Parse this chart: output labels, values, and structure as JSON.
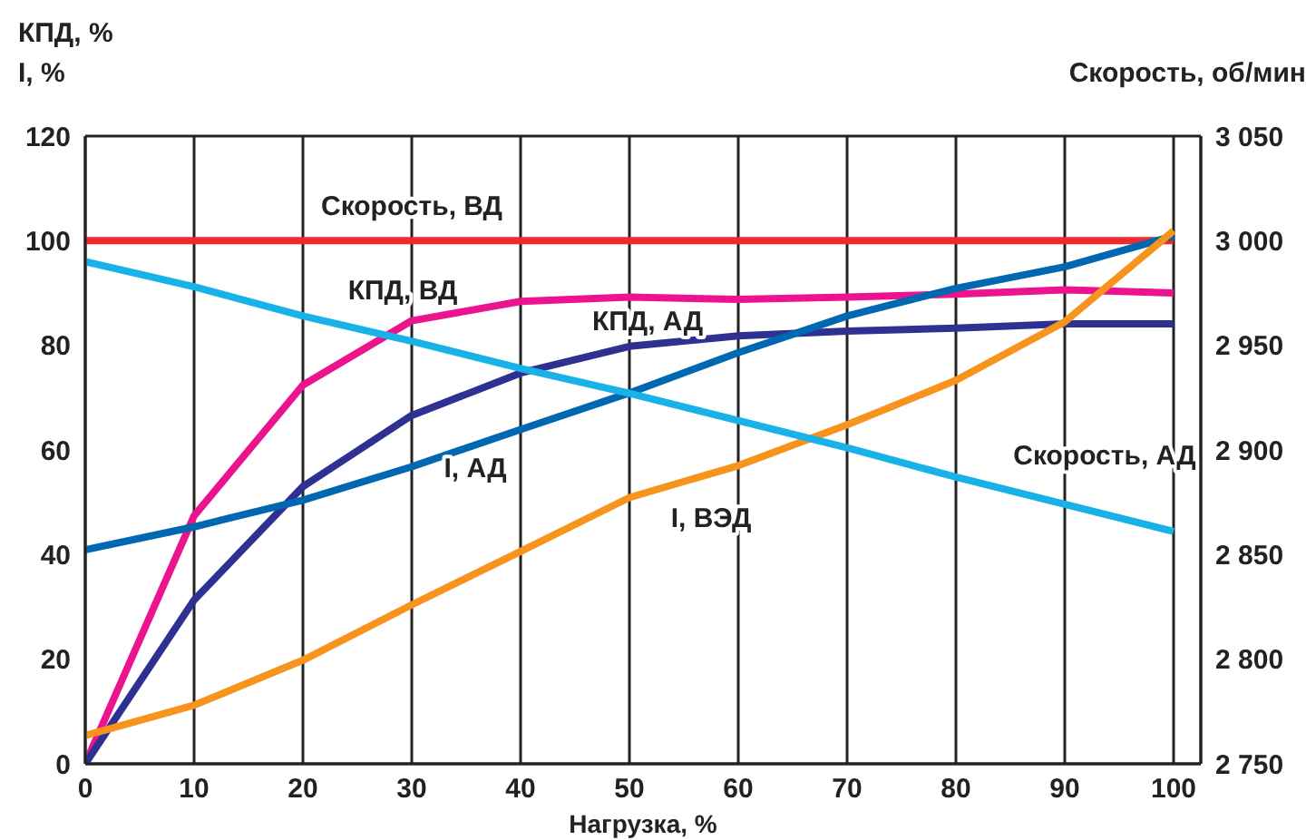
{
  "chart_data": {
    "type": "line",
    "ylabel": "КПД, %\nI, %",
    "y2label": "Скорость, об/мин",
    "xlabel": "Нагрузка, %",
    "x": [
      0,
      10,
      20,
      30,
      40,
      50,
      60,
      70,
      80,
      90,
      100
    ],
    "xlim": [
      0,
      102.5
    ],
    "xticks": [
      0,
      10,
      20,
      30,
      40,
      50,
      60,
      70,
      80,
      90,
      100
    ],
    "ylim": [
      0,
      120
    ],
    "yticks": [
      0,
      20,
      40,
      60,
      80,
      100,
      120
    ],
    "y2lim": [
      2750,
      3050
    ],
    "y2ticks": [
      {
        "value": 2750,
        "label": "2 750"
      },
      {
        "value": 2800,
        "label": "2 800"
      },
      {
        "value": 2850,
        "label": "2 850"
      },
      {
        "value": 2900,
        "label": "2 900"
      },
      {
        "value": 2950,
        "label": "2 950"
      },
      {
        "value": 3000,
        "label": "3 000"
      },
      {
        "value": 3050,
        "label": "3 050"
      }
    ],
    "grid": true,
    "legend": false,
    "marker": "none",
    "line_style": "solid",
    "series": [
      {
        "name": "Скорость, ВД",
        "color": "#ee2a2f",
        "axis": "y2",
        "values": [
          3000,
          3000,
          3000,
          3000,
          3000,
          3000,
          3000,
          3000,
          3000,
          3000,
          3000
        ]
      },
      {
        "name": "КПД, ВД",
        "color": "#ec138f",
        "values": [
          0,
          47.4,
          72.4,
          84.7,
          88.4,
          89.2,
          88.8,
          89.2,
          89.8,
          90.6,
          90
        ]
      },
      {
        "name": "КПД, АД",
        "color": "#2e3192",
        "values": [
          0,
          31.3,
          53,
          66.6,
          74.7,
          79.8,
          81.8,
          82.7,
          83.3,
          84.1,
          84.1
        ]
      },
      {
        "name": "I, АД",
        "color": "#0067b1",
        "values": [
          40.9,
          45.3,
          50.4,
          56.8,
          63.9,
          70.9,
          78.6,
          85.6,
          90.9,
          95,
          100.9
        ]
      },
      {
        "name": "I, ВЭД",
        "color": "#f7941d",
        "values": [
          5.4,
          11.2,
          19.8,
          30.4,
          40.6,
          50.9,
          57,
          64.8,
          73.3,
          84.5,
          101.9
        ]
      },
      {
        "name": "Скорость, АД",
        "color": "#19b2e8",
        "axis": "y2",
        "values": [
          2990,
          2978,
          2964,
          2952,
          2939,
          2927,
          2914,
          2901,
          2887,
          2874,
          2861
        ]
      }
    ]
  }
}
